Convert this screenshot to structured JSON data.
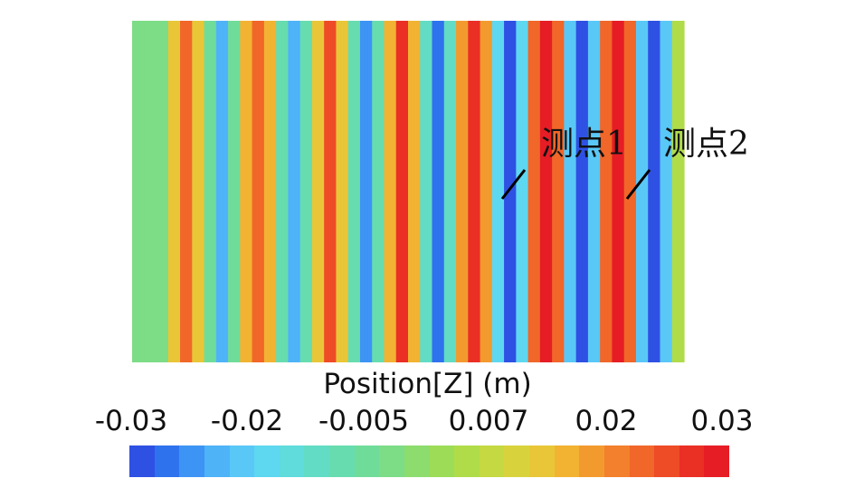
{
  "probe_labels": [
    "测点1",
    "测点2"
  ],
  "legend": {
    "title": "Position[Z] (m)",
    "ticks": [
      "-0.03",
      "-0.02",
      "-0.005",
      "0.007",
      "0.02",
      "0.03"
    ],
    "min": -0.03,
    "max": 0.03,
    "colors": [
      "#2e51e3",
      "#2f72ee",
      "#3d94f4",
      "#4fb3f8",
      "#59c8f7",
      "#5ed7f0",
      "#5fdcdb",
      "#62dcc4",
      "#67dcaf",
      "#70dc9a",
      "#7ddc86",
      "#8cdc6e",
      "#9ddc57",
      "#b0dc4a",
      "#c5d942",
      "#d8d33c",
      "#e9c637",
      "#f2b232",
      "#f39a2f",
      "#f3802c",
      "#f16629",
      "#ee4b27",
      "#ea2f25",
      "#e61d25"
    ]
  },
  "field": {
    "stripe_pattern": [
      -0.0045,
      -0.005,
      -0.0045,
      0.012,
      0.022,
      0.012,
      -0.007,
      -0.021,
      -0.007,
      0.014,
      0.022,
      0.014,
      -0.008,
      -0.022,
      -0.008,
      0.012,
      0.023,
      0.012,
      -0.01,
      -0.024,
      -0.01,
      0.014,
      0.025,
      0.014,
      -0.012,
      -0.026,
      -0.012,
      0.016,
      0.027,
      0.016,
      -0.016,
      -0.028,
      -0.016,
      0.02,
      0.029,
      0.02,
      -0.018,
      -0.029,
      -0.018,
      0.022,
      0.03,
      0.022,
      -0.02,
      -0.03,
      -0.02,
      0.004
    ]
  }
}
